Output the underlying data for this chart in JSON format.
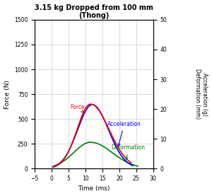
{
  "title_line1": "3.15 kg Dropped from 100 mm",
  "title_line2": "(Thong)",
  "xlabel": "Time (ms)",
  "ylabel_left": "Force (N)",
  "ylabel_right": "Acceleration (g)\nDeformation (mm)",
  "xlim": [
    -5,
    30
  ],
  "ylim_left": [
    0,
    1500
  ],
  "ylim_right": [
    0,
    50
  ],
  "xticks": [
    -5,
    0,
    5,
    10,
    15,
    20,
    25,
    30
  ],
  "yticks_left": [
    0,
    250,
    500,
    750,
    1000,
    1250,
    1500
  ],
  "yticks_right": [
    0,
    10,
    20,
    30,
    40,
    50
  ],
  "force_color": "#ff0000",
  "accel_color": "#0000ff",
  "deform_color": "#008000",
  "background_color": "#ffffff",
  "grid_color": "#cccccc",
  "force_peak_x": 11.5,
  "force_peak_y": 650,
  "accel_peak_x": 12.0,
  "accel_peak_y": 645,
  "deform_peak_x": 11.5,
  "deform_peak_y": 265,
  "force_start": 0.3,
  "force_end": 23.5,
  "accel_end": 24.0,
  "deform_start": 0.5,
  "deform_end": 25.5,
  "label_force": "Force",
  "label_accel": "Acceleration",
  "label_deform": "Deformation",
  "figwidth": 3.0,
  "figheight": 2.77,
  "dpi": 100
}
